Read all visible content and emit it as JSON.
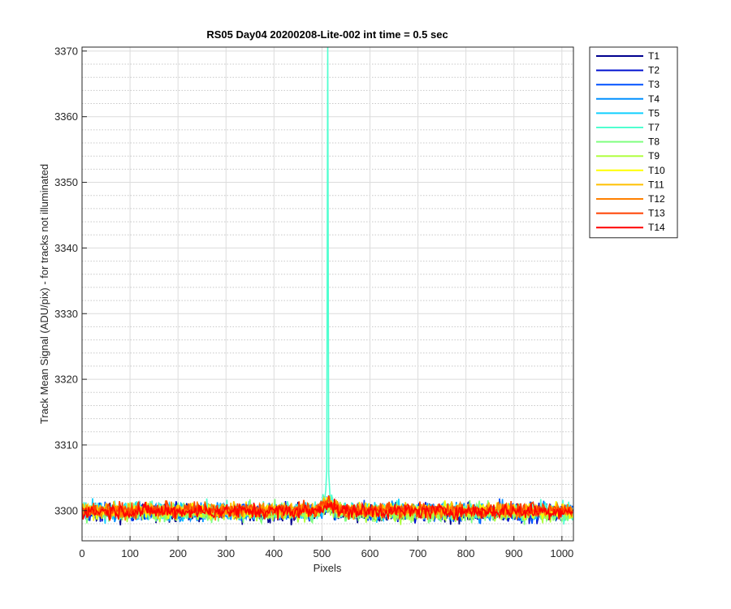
{
  "chart_data": {
    "type": "line",
    "title": "RS05 Day04 20200208-Lite-002 int time = 0.5 sec",
    "xlabel": "Pixels",
    "ylabel": "Track Mean Signal (ADU/pix) - for tracks not illuminated",
    "xlim": [
      0,
      1024
    ],
    "ylim": [
      3295.4,
      3370.6
    ],
    "xticks": [
      0,
      100,
      200,
      300,
      400,
      500,
      600,
      700,
      800,
      900,
      1000
    ],
    "yticks": [
      3300,
      3310,
      3320,
      3330,
      3340,
      3350,
      3360,
      3370
    ],
    "grid": true,
    "minor_grid": true,
    "legend_position": "outside-top-right",
    "baseline": 3300,
    "series": [
      {
        "name": "T1",
        "color": "#00008f",
        "mean": 3299.6
      },
      {
        "name": "T2",
        "color": "#0010d0",
        "mean": 3299.7
      },
      {
        "name": "T3",
        "color": "#0050ff",
        "mean": 3299.8
      },
      {
        "name": "T4",
        "color": "#0090ff",
        "mean": 3299.8
      },
      {
        "name": "T5",
        "color": "#10d0ff",
        "mean": 3299.9
      },
      {
        "name": "T7",
        "color": "#50ffd0",
        "mean": 3300.0,
        "spike": {
          "x": 512,
          "peak": 3371
        }
      },
      {
        "name": "T8",
        "color": "#80ff80",
        "mean": 3299.7
      },
      {
        "name": "T9",
        "color": "#b0ff40",
        "mean": 3299.6
      },
      {
        "name": "T10",
        "color": "#ffff00",
        "mean": 3300.0
      },
      {
        "name": "T11",
        "color": "#ffc000",
        "mean": 3300.1
      },
      {
        "name": "T12",
        "color": "#ff8000",
        "mean": 3300.0
      },
      {
        "name": "T13",
        "color": "#ff4000",
        "mean": 3300.1
      },
      {
        "name": "T14",
        "color": "#ff0000",
        "mean": 3299.9
      }
    ]
  }
}
